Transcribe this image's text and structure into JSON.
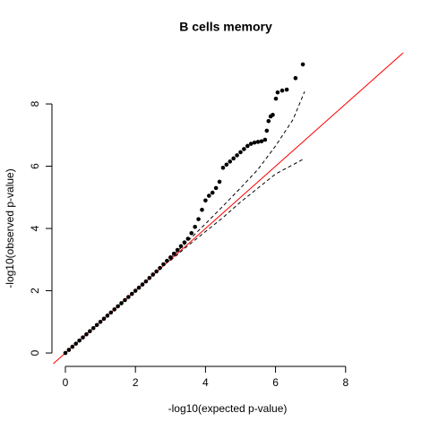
{
  "chart_data": {
    "type": "scatter",
    "title": "B cells memory",
    "xlabel": "-log10(expected p-value)",
    "ylabel": "-log10(observed p-value)",
    "x": [
      0,
      0.1,
      0.2,
      0.3,
      0.4,
      0.5,
      0.6,
      0.7,
      0.8,
      0.9,
      1.0,
      1.1,
      1.2,
      1.3,
      1.4,
      1.5,
      1.6,
      1.7,
      1.8,
      1.9,
      2.0,
      2.1,
      2.2,
      2.3,
      2.4,
      2.5,
      2.6,
      2.7,
      2.8,
      2.9,
      3.0,
      3.1,
      3.2,
      3.3,
      3.4,
      3.5,
      3.6,
      3.7,
      3.8,
      3.9,
      4.0,
      4.1,
      4.2,
      4.3,
      4.4,
      4.5,
      4.6,
      4.7,
      4.8,
      4.9,
      5.0,
      5.1,
      5.2,
      5.3,
      5.4,
      5.5,
      5.6,
      5.7,
      5.75,
      5.8,
      5.86,
      5.92,
      6.01,
      6.06,
      6.19,
      6.32,
      6.57,
      6.78
    ],
    "values": [
      0,
      0.1,
      0.2,
      0.3,
      0.4,
      0.5,
      0.6,
      0.7,
      0.8,
      0.9,
      1.0,
      1.1,
      1.2,
      1.3,
      1.4,
      1.5,
      1.6,
      1.7,
      1.8,
      1.9,
      2.0,
      2.1,
      2.2,
      2.3,
      2.41,
      2.52,
      2.62,
      2.73,
      2.85,
      2.96,
      3.07,
      3.19,
      3.31,
      3.43,
      3.55,
      3.67,
      3.85,
      4.05,
      4.3,
      4.6,
      4.9,
      5.05,
      5.15,
      5.3,
      5.5,
      5.95,
      6.05,
      6.15,
      6.25,
      6.35,
      6.45,
      6.55,
      6.65,
      6.72,
      6.76,
      6.78,
      6.8,
      6.85,
      7.14,
      7.45,
      7.6,
      7.65,
      8.17,
      8.37,
      8.43,
      8.46,
      8.83,
      9.27
    ],
    "color": "#000000",
    "bounds": {
      "x": [
        3,
        3.5,
        4,
        4.5,
        5,
        5.5,
        6,
        6.5,
        6.83
      ],
      "upper": [
        3.05,
        3.6,
        4.15,
        4.72,
        5.3,
        5.9,
        6.65,
        7.5,
        8.4
      ],
      "lower": [
        2.97,
        3.45,
        3.9,
        4.35,
        4.85,
        5.3,
        5.75,
        6.05,
        6.25
      ],
      "color": "#000000"
    },
    "reference_line": {
      "slope": 1,
      "intercept": 0,
      "color": "#ff0000"
    },
    "xlim": [
      -0.35,
      9.65
    ],
    "ylim": [
      -0.35,
      9.65
    ],
    "xticks": [
      0,
      2,
      4,
      6,
      8
    ],
    "yticks": [
      0,
      2,
      4,
      6,
      8
    ]
  }
}
